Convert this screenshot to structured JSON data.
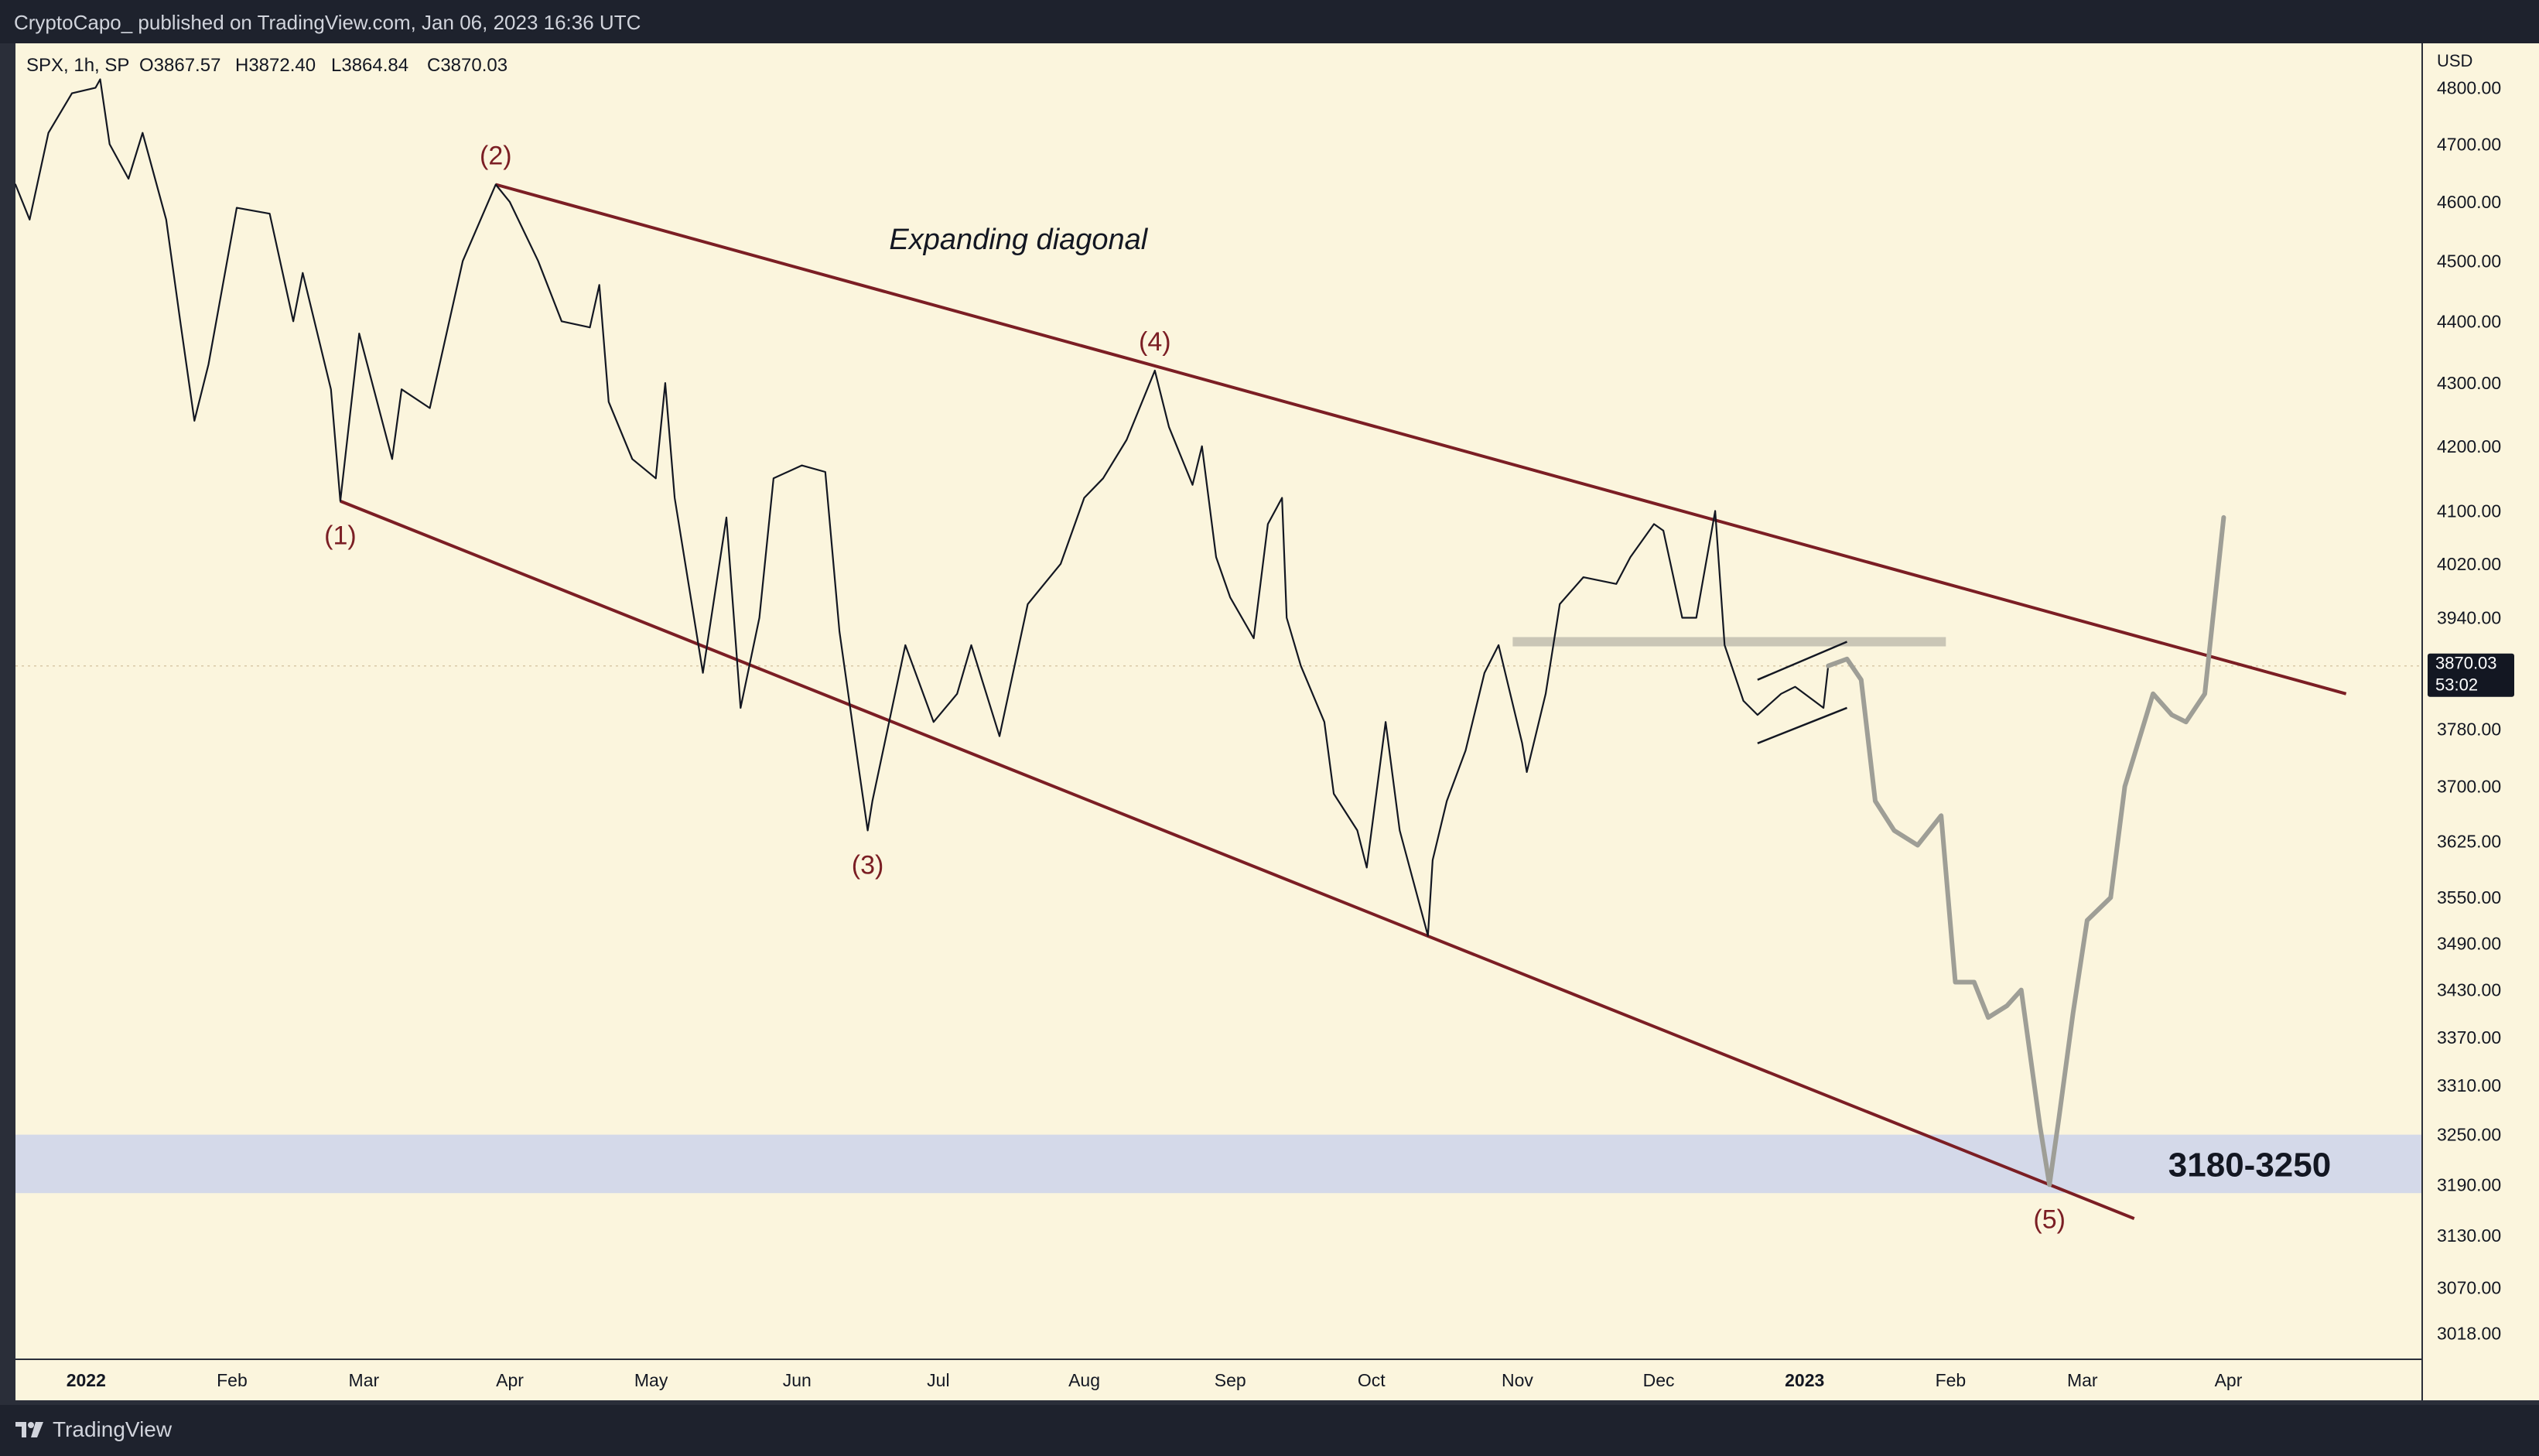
{
  "header": {
    "publisher": "CryptoCapo_ published on TradingView.com, Jan 06, 2023 16:36 UTC"
  },
  "footer": {
    "brand": "TradingView"
  },
  "colors": {
    "chart_bg": "#fbf5dd",
    "frame_bg": "#2a2e39",
    "header_bg": "#1e222d",
    "price_line": "#131722",
    "channel_line": "#7b1e24",
    "projection_line": "#9e9e96",
    "zone_fill": "#cfd6ea",
    "resistance_band": "#c8c4b4",
    "wave_label": "#7b1e24"
  },
  "chart_data": {
    "type": "line",
    "legend": {
      "symbol": "SPX, 1h, SP",
      "open": "O3867.57",
      "high": "H3872.40",
      "low": "L3864.84",
      "close": "C3870.03"
    },
    "price_unit": "USD",
    "last_price": "3870.03",
    "countdown": "53:02",
    "y_axis": {
      "scale": "log",
      "ticks": [
        "4800.00",
        "4700.00",
        "4600.00",
        "4500.00",
        "4400.00",
        "4300.00",
        "4200.00",
        "4100.00",
        "4020.00",
        "3940.00",
        "3870.00",
        "3780.00",
        "3700.00",
        "3625.00",
        "3550.00",
        "3490.00",
        "3430.00",
        "3370.00",
        "3310.00",
        "3250.00",
        "3190.00",
        "3130.00",
        "3070.00",
        "3018.00"
      ],
      "ylim": [
        2990,
        4880
      ]
    },
    "x_axis": {
      "xlim": [
        "2021-12-17",
        "2023-05-12"
      ],
      "ticks": [
        {
          "label": "2022",
          "date": "2022-01-01",
          "bold": true
        },
        {
          "label": "Feb",
          "date": "2022-02-01"
        },
        {
          "label": "Mar",
          "date": "2022-03-01"
        },
        {
          "label": "Apr",
          "date": "2022-04-01"
        },
        {
          "label": "May",
          "date": "2022-05-01"
        },
        {
          "label": "Jun",
          "date": "2022-06-01"
        },
        {
          "label": "Jul",
          "date": "2022-07-01"
        },
        {
          "label": "Aug",
          "date": "2022-08-01"
        },
        {
          "label": "Sep",
          "date": "2022-09-01"
        },
        {
          "label": "Oct",
          "date": "2022-10-01"
        },
        {
          "label": "Nov",
          "date": "2022-11-01"
        },
        {
          "label": "Dec",
          "date": "2022-12-01"
        },
        {
          "label": "2023",
          "date": "2023-01-01",
          "bold": true
        },
        {
          "label": "Feb",
          "date": "2023-02-01"
        },
        {
          "label": "Mar",
          "date": "2023-03-01"
        },
        {
          "label": "Apr",
          "date": "2023-04-01"
        }
      ]
    },
    "series": [
      {
        "style": "historical",
        "points": [
          [
            "2021-12-17",
            4630
          ],
          [
            "2021-12-20",
            4570
          ],
          [
            "2021-12-24",
            4720
          ],
          [
            "2021-12-29",
            4790
          ],
          [
            "2022-01-03",
            4800
          ],
          [
            "2022-01-04",
            4815
          ],
          [
            "2022-01-06",
            4700
          ],
          [
            "2022-01-10",
            4640
          ],
          [
            "2022-01-13",
            4720
          ],
          [
            "2022-01-18",
            4570
          ],
          [
            "2022-01-21",
            4400
          ],
          [
            "2022-01-24",
            4240
          ],
          [
            "2022-01-27",
            4330
          ],
          [
            "2022-02-02",
            4590
          ],
          [
            "2022-02-09",
            4580
          ],
          [
            "2022-02-14",
            4400
          ],
          [
            "2022-02-16",
            4480
          ],
          [
            "2022-02-22",
            4290
          ],
          [
            "2022-02-24",
            4115
          ],
          [
            "2022-02-28",
            4380
          ],
          [
            "2022-03-07",
            4180
          ],
          [
            "2022-03-09",
            4290
          ],
          [
            "2022-03-15",
            4260
          ],
          [
            "2022-03-22",
            4500
          ],
          [
            "2022-03-29",
            4630
          ],
          [
            "2022-04-01",
            4600
          ],
          [
            "2022-04-07",
            4500
          ],
          [
            "2022-04-12",
            4400
          ],
          [
            "2022-04-18",
            4390
          ],
          [
            "2022-04-20",
            4460
          ],
          [
            "2022-04-22",
            4270
          ],
          [
            "2022-04-27",
            4180
          ],
          [
            "2022-05-02",
            4150
          ],
          [
            "2022-05-04",
            4300
          ],
          [
            "2022-05-06",
            4120
          ],
          [
            "2022-05-12",
            3860
          ],
          [
            "2022-05-17",
            4090
          ],
          [
            "2022-05-20",
            3810
          ],
          [
            "2022-05-24",
            3940
          ],
          [
            "2022-05-27",
            4150
          ],
          [
            "2022-06-02",
            4170
          ],
          [
            "2022-06-07",
            4160
          ],
          [
            "2022-06-10",
            3920
          ],
          [
            "2022-06-14",
            3730
          ],
          [
            "2022-06-16",
            3640
          ],
          [
            "2022-06-17",
            3680
          ],
          [
            "2022-06-24",
            3900
          ],
          [
            "2022-06-30",
            3790
          ],
          [
            "2022-07-05",
            3830
          ],
          [
            "2022-07-08",
            3900
          ],
          [
            "2022-07-14",
            3770
          ],
          [
            "2022-07-20",
            3960
          ],
          [
            "2022-07-27",
            4020
          ],
          [
            "2022-08-01",
            4120
          ],
          [
            "2022-08-05",
            4150
          ],
          [
            "2022-08-10",
            4210
          ],
          [
            "2022-08-16",
            4320
          ],
          [
            "2022-08-19",
            4230
          ],
          [
            "2022-08-24",
            4140
          ],
          [
            "2022-08-26",
            4200
          ],
          [
            "2022-08-29",
            4030
          ],
          [
            "2022-09-01",
            3970
          ],
          [
            "2022-09-06",
            3910
          ],
          [
            "2022-09-09",
            4080
          ],
          [
            "2022-09-12",
            4120
          ],
          [
            "2022-09-13",
            3940
          ],
          [
            "2022-09-16",
            3870
          ],
          [
            "2022-09-21",
            3790
          ],
          [
            "2022-09-23",
            3690
          ],
          [
            "2022-09-28",
            3640
          ],
          [
            "2022-09-30",
            3590
          ],
          [
            "2022-10-04",
            3790
          ],
          [
            "2022-10-07",
            3640
          ],
          [
            "2022-10-13",
            3500
          ],
          [
            "2022-10-14",
            3600
          ],
          [
            "2022-10-17",
            3680
          ],
          [
            "2022-10-21",
            3750
          ],
          [
            "2022-10-25",
            3860
          ],
          [
            "2022-10-28",
            3900
          ],
          [
            "2022-11-02",
            3760
          ],
          [
            "2022-11-03",
            3720
          ],
          [
            "2022-11-07",
            3830
          ],
          [
            "2022-11-10",
            3960
          ],
          [
            "2022-11-15",
            4000
          ],
          [
            "2022-11-22",
            3990
          ],
          [
            "2022-11-25",
            4030
          ],
          [
            "2022-11-30",
            4080
          ],
          [
            "2022-12-02",
            4070
          ],
          [
            "2022-12-06",
            3940
          ],
          [
            "2022-12-09",
            3940
          ],
          [
            "2022-12-13",
            4100
          ],
          [
            "2022-12-15",
            3900
          ],
          [
            "2022-12-19",
            3820
          ],
          [
            "2022-12-22",
            3800
          ],
          [
            "2022-12-27",
            3830
          ],
          [
            "2022-12-30",
            3840
          ],
          [
            "2023-01-03",
            3820
          ],
          [
            "2023-01-05",
            3810
          ],
          [
            "2023-01-06",
            3870
          ]
        ]
      },
      {
        "style": "projection",
        "points": [
          [
            "2023-01-06",
            3870
          ],
          [
            "2023-01-10",
            3880
          ],
          [
            "2023-01-13",
            3850
          ],
          [
            "2023-01-16",
            3680
          ],
          [
            "2023-01-20",
            3640
          ],
          [
            "2023-01-25",
            3620
          ],
          [
            "2023-01-30",
            3660
          ],
          [
            "2023-02-02",
            3440
          ],
          [
            "2023-02-06",
            3440
          ],
          [
            "2023-02-09",
            3395
          ],
          [
            "2023-02-13",
            3410
          ],
          [
            "2023-02-16",
            3430
          ],
          [
            "2023-02-20",
            3260
          ],
          [
            "2023-02-22",
            3190
          ],
          [
            "2023-02-24",
            3270
          ],
          [
            "2023-02-27",
            3400
          ],
          [
            "2023-03-02",
            3520
          ],
          [
            "2023-03-07",
            3550
          ],
          [
            "2023-03-10",
            3700
          ],
          [
            "2023-03-16",
            3830
          ],
          [
            "2023-03-20",
            3800
          ],
          [
            "2023-03-23",
            3790
          ],
          [
            "2023-03-27",
            3830
          ],
          [
            "2023-03-31",
            4090
          ]
        ]
      }
    ],
    "annotations": [
      {
        "label": "(1)",
        "date": "2022-02-24",
        "price": 4115,
        "pos": "below"
      },
      {
        "label": "(2)",
        "date": "2022-03-29",
        "price": 4630,
        "pos": "above"
      },
      {
        "label": "(3)",
        "date": "2022-06-16",
        "price": 3640,
        "pos": "below"
      },
      {
        "label": "(4)",
        "date": "2022-08-16",
        "price": 4320,
        "pos": "above"
      },
      {
        "label": "(5)",
        "date": "2023-02-22",
        "price": 3190,
        "pos": "below"
      }
    ],
    "channel": {
      "upper": [
        [
          "2022-03-29",
          4630
        ],
        [
          "2023-04-26",
          3830
        ]
      ],
      "lower": [
        [
          "2022-02-24",
          4115
        ],
        [
          "2023-03-12",
          3150
        ]
      ]
    },
    "wedge": {
      "upper": [
        [
          "2022-12-22",
          3850
        ],
        [
          "2023-01-10",
          3905
        ]
      ],
      "lower": [
        [
          "2022-12-22",
          3760
        ],
        [
          "2023-01-10",
          3810
        ]
      ]
    },
    "resistance": {
      "price": 3905,
      "from": "2022-10-31",
      "to": "2023-01-31"
    },
    "zone": {
      "low": 3180,
      "high": 3250,
      "label": "3180-3250"
    },
    "text_annotation": {
      "text": "Expanding diagonal",
      "date": "2022-07-18",
      "price": 4520
    }
  }
}
